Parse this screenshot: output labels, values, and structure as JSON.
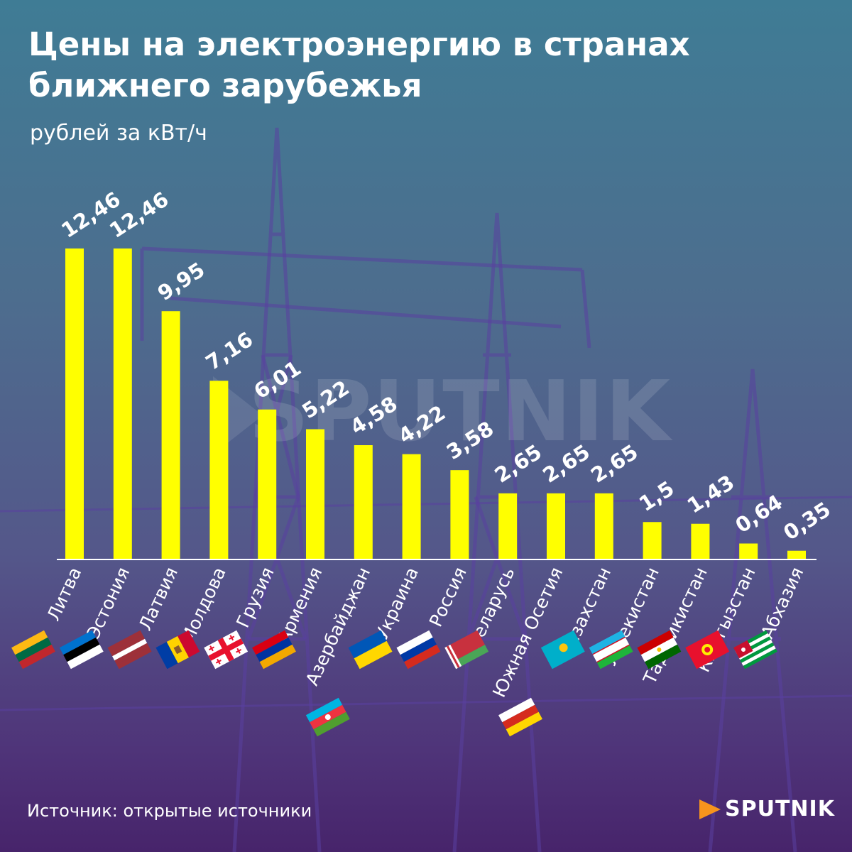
{
  "title": "Цены на электроэнергию в странах ближнего зарубежья",
  "subtitle": "рублей за кВт/ч",
  "source": "Источник: открытые источники",
  "brand": "SPUTNIK",
  "watermark": "SPUTNIK",
  "colors": {
    "bar": "#ffff00",
    "axis": "#ffffff",
    "text": "#ffffff",
    "brand_accent": "#f7941d"
  },
  "chart_data": {
    "type": "bar",
    "title": "Цены на электроэнергию в странах ближнего зарубежья",
    "ylabel": "рублей за кВт/ч",
    "xlabel": "",
    "ylim": [
      0,
      12.46
    ],
    "grid": false,
    "categories": [
      "Литва",
      "Эстония",
      "Латвия",
      "Молдова",
      "Грузия",
      "Армения",
      "Азербайджан",
      "Украина",
      "Россия",
      "Беларусь",
      "Южная Осетия",
      "Казахстан",
      "Узбекистан",
      "Таджикистан",
      "Кыргызстан",
      "Абхазия"
    ],
    "values": [
      12.46,
      12.46,
      9.95,
      7.16,
      6.01,
      5.22,
      4.58,
      4.22,
      3.58,
      2.65,
      2.65,
      2.65,
      1.5,
      1.43,
      0.64,
      0.35
    ],
    "value_labels": [
      "12,46",
      "12,46",
      "9,95",
      "7,16",
      "6,01",
      "5,22",
      "4,58",
      "4,22",
      "3,58",
      "2,65",
      "2,65",
      "2,65",
      "1,5",
      "1,43",
      "0,64",
      "0,35"
    ],
    "flags": [
      "lithuania-flag",
      "estonia-flag",
      "latvia-flag",
      "moldova-flag",
      "georgia-flag",
      "armenia-flag",
      "azerbaijan-flag",
      "ukraine-flag",
      "russia-flag",
      "belarus-flag",
      "south-ossetia-flag",
      "kazakhstan-flag",
      "uzbekistan-flag",
      "tajikistan-flag",
      "kyrgyzstan-flag",
      "abkhazia-flag"
    ]
  }
}
